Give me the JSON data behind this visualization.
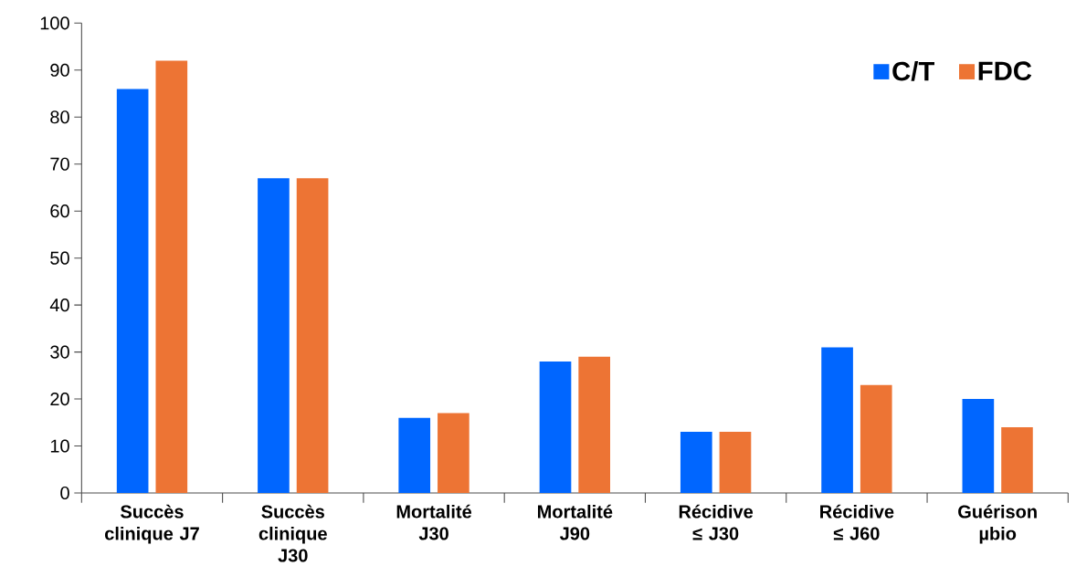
{
  "chart_data": {
    "type": "bar",
    "categories": [
      "Succès clinique J7",
      "Succès clinique J30",
      "Mortalité J30",
      "Mortalité J90",
      "Récidive ≤ J30",
      "Récidive ≤ J60",
      "Guérison µbio"
    ],
    "series": [
      {
        "name": "C/T",
        "color": "#0066ff",
        "values": [
          86,
          67,
          16,
          28,
          13,
          31,
          20
        ]
      },
      {
        "name": "FDC",
        "color": "#ed7434",
        "values": [
          92,
          67,
          17,
          29,
          13,
          23,
          14
        ]
      }
    ],
    "ylim": [
      0,
      100
    ],
    "yticks": [
      0,
      10,
      20,
      30,
      40,
      50,
      60,
      70,
      80,
      90,
      100
    ],
    "grid": false,
    "legend": "top right"
  }
}
